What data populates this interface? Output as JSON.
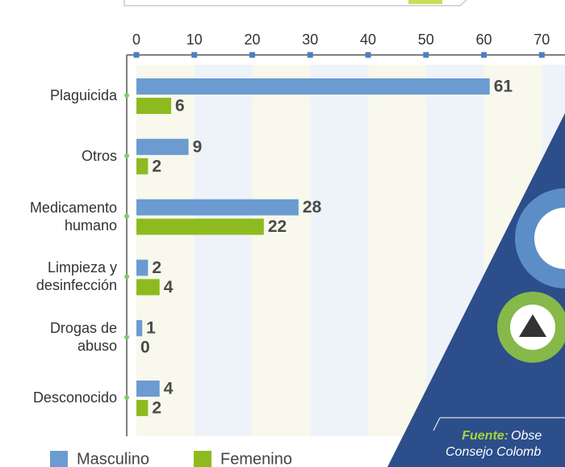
{
  "chart_data": {
    "type": "barh",
    "categories": [
      "Plaguicida",
      "Otros",
      "Medicamento humano",
      "Limpieza y desinfección",
      "Drogas de abuso",
      "Desconocido"
    ],
    "series": [
      {
        "name": "Masculino",
        "color": "#6b9bd1",
        "values": [
          61,
          9,
          28,
          2,
          1,
          4
        ]
      },
      {
        "name": "Femenino",
        "color": "#8dbb1f",
        "values": [
          6,
          2,
          22,
          4,
          0,
          2
        ]
      }
    ],
    "xlim": [
      0,
      74
    ],
    "xticks": [
      0,
      10,
      20,
      30,
      40,
      50,
      60,
      70
    ],
    "source": {
      "label": "Fuente:",
      "lines": [
        "Obse",
        "Consejo Colomb"
      ]
    }
  }
}
